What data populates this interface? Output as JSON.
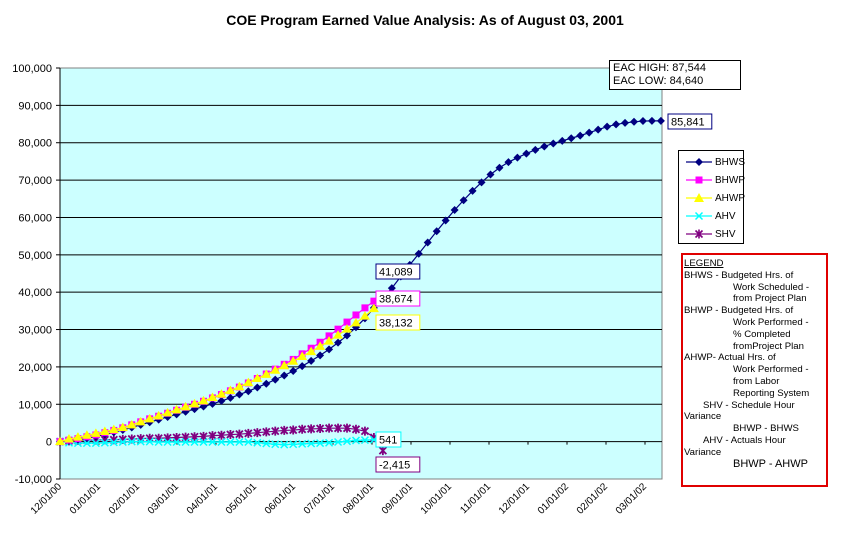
{
  "chart_data": {
    "type": "line",
    "title": "COE Program Earned Value Analysis: As of August 03, 2001",
    "xlabel": "",
    "ylabel": "",
    "ylim": [
      -10000,
      100000
    ],
    "yticks": [
      100000,
      90000,
      80000,
      70000,
      60000,
      50000,
      40000,
      30000,
      20000,
      10000,
      0,
      -10000
    ],
    "ytick_labels": [
      "100,000",
      "90,000",
      "80,000",
      "70,000",
      "60,000",
      "50,000",
      "40,000",
      "30,000",
      "20,000",
      "10,000",
      "0",
      "-10,000"
    ],
    "xtick_labels": [
      "12/01/00",
      "01/01/01",
      "02/01/01",
      "03/01/01",
      "04/01/01",
      "05/01/01",
      "06/01/01",
      "07/01/01",
      "08/01/01",
      "09/01/01",
      "10/01/01",
      "11/01/01",
      "12/01/01",
      "01/01/02",
      "02/01/02",
      "03/01/02"
    ],
    "x_unit": "weeks since 12/01/00",
    "xlim_months": [
      0,
      15.6
    ],
    "grid": true,
    "background": "#ccffff",
    "legend_position": "right",
    "series": [
      {
        "name": "BHWS",
        "color": "#000080",
        "marker": "diamond",
        "values": [
          0,
          200,
          500,
          900,
          1400,
          1900,
          2500,
          3100,
          3800,
          4500,
          5200,
          5900,
          6600,
          7300,
          8000,
          8700,
          9400,
          10100,
          10900,
          11700,
          12600,
          13500,
          14500,
          15500,
          16600,
          17700,
          18900,
          20200,
          21600,
          23100,
          24700,
          26500,
          28400,
          30600,
          33000,
          35800,
          38500,
          41089,
          44200,
          47300,
          50300,
          53300,
          56300,
          59200,
          62000,
          64600,
          67100,
          69400,
          71500,
          73300,
          74800,
          76000,
          77100,
          78100,
          79000,
          79800,
          80500,
          81200,
          81900,
          82700,
          83500,
          84300,
          84900,
          85300,
          85600,
          85800,
          85841,
          85841
        ]
      },
      {
        "name": "BHWP",
        "color": "#ff00ff",
        "marker": "square",
        "values": [
          0,
          400,
          800,
          1300,
          1800,
          2400,
          3000,
          3700,
          4500,
          5300,
          6100,
          6800,
          7600,
          8400,
          9200,
          10000,
          10800,
          11700,
          12600,
          13600,
          14600,
          15700,
          16900,
          18100,
          19400,
          20700,
          22000,
          23500,
          25000,
          26600,
          28300,
          30100,
          32000,
          33900,
          35800,
          37600,
          38674
        ]
      },
      {
        "name": "AHWP",
        "color": "#ffff00",
        "marker": "triangle",
        "values": [
          0,
          700,
          1200,
          1700,
          2200,
          2700,
          3200,
          3800,
          4500,
          5300,
          6100,
          6900,
          7700,
          8500,
          9300,
          10100,
          10900,
          11800,
          12700,
          13700,
          14700,
          15800,
          16900,
          18000,
          19100,
          20300,
          21500,
          22800,
          24100,
          25500,
          26900,
          28500,
          30100,
          31800,
          33600,
          35600,
          38132
        ]
      },
      {
        "name": "AHV",
        "color": "#00ffff",
        "marker": "x",
        "values": [
          0,
          -300,
          -400,
          -400,
          -400,
          -300,
          -200,
          -100,
          0,
          0,
          0,
          -100,
          -100,
          -100,
          -100,
          -100,
          -100,
          -100,
          -100,
          -100,
          -100,
          -100,
          -300,
          -500,
          -700,
          -800,
          -700,
          -600,
          -500,
          -400,
          -300,
          -100,
          100,
          300,
          400,
          500,
          541
        ]
      },
      {
        "name": "SHV",
        "color": "#800080",
        "marker": "asterisk",
        "values": [
          0,
          200,
          300,
          400,
          400,
          500,
          500,
          600,
          700,
          800,
          900,
          900,
          1000,
          1100,
          1200,
          1300,
          1400,
          1600,
          1700,
          1900,
          2000,
          2200,
          2400,
          2600,
          2800,
          3000,
          3100,
          3300,
          3400,
          3500,
          3600,
          3600,
          3600,
          3300,
          2800,
          1100,
          -2415
        ]
      }
    ],
    "data_labels": [
      {
        "series": "BHWS",
        "text": "85,841"
      },
      {
        "series": "BHWS",
        "text": "41,089"
      },
      {
        "series": "BHWP",
        "text": "38,674"
      },
      {
        "series": "AHWP",
        "text": "38,132"
      },
      {
        "series": "AHV",
        "text": "541"
      },
      {
        "series": "SHV",
        "text": "-2,415"
      }
    ],
    "annotations": {
      "eac_high": "EAC HIGH: 87,544",
      "eac_low": "EAC LOW: 84,640"
    }
  },
  "legend_notes": [
    {
      "text": "LEGEND",
      "cls": "u"
    },
    {
      "text": "BHWS - Budgeted Hrs. of",
      "cls": ""
    },
    {
      "text": "Work Scheduled -",
      "cls": "i1"
    },
    {
      "text": "from Project Plan",
      "cls": "i1"
    },
    {
      "text": "BHWP - Budgeted Hrs. of",
      "cls": ""
    },
    {
      "text": "Work Performed -",
      "cls": "i1"
    },
    {
      "text": "% Completed",
      "cls": "i1"
    },
    {
      "text": "fromProject Plan",
      "cls": "i1"
    },
    {
      "text": "AHWP- Actual Hrs. of",
      "cls": ""
    },
    {
      "text": "Work Performed -",
      "cls": "i1"
    },
    {
      "text": "from Labor",
      "cls": "i1"
    },
    {
      "text": "Reporting System",
      "cls": "i1"
    },
    {
      "text": "SHV - Schedule Hour",
      "cls": "i4"
    },
    {
      "text": "Variance",
      "cls": ""
    },
    {
      "text": "BHWP - BHWS",
      "cls": "i2"
    },
    {
      "text": "AHV - Actuals Hour",
      "cls": "i4"
    },
    {
      "text": "Variance",
      "cls": ""
    },
    {
      "text": "BHWP - AHWP",
      "cls": "i2 big"
    }
  ]
}
